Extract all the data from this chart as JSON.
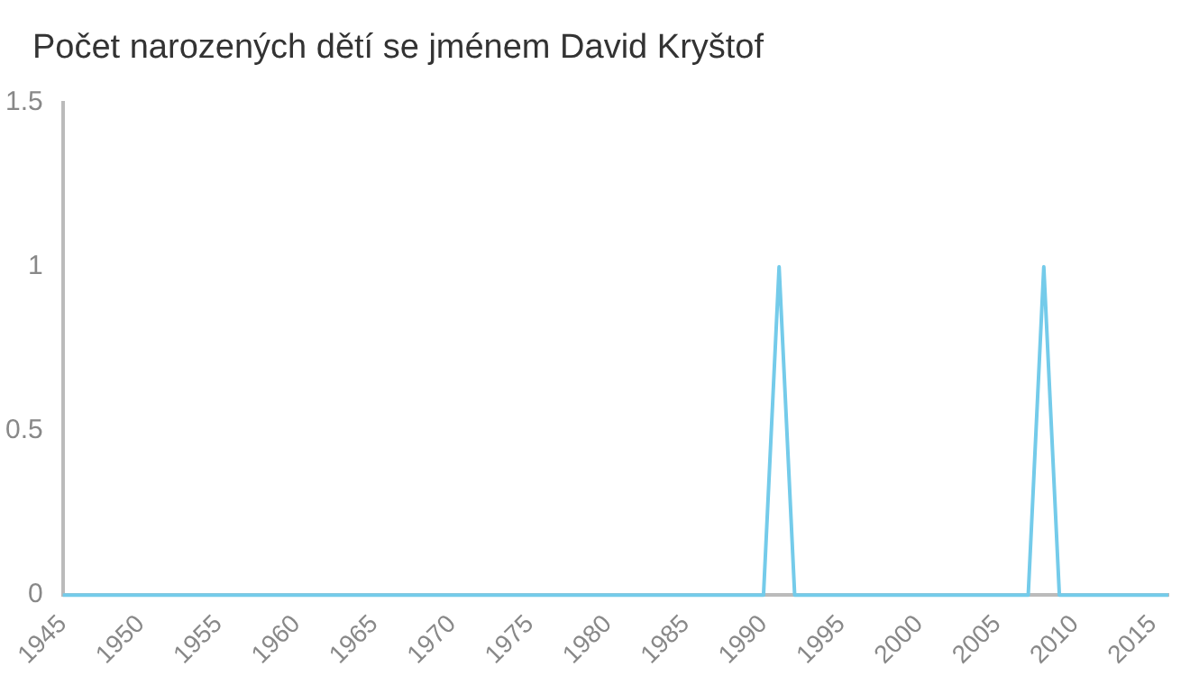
{
  "chart_data": {
    "type": "line",
    "title": "Počet narozených dětí se jménem David Kryštof",
    "x": [
      1945,
      1990,
      1991,
      1992,
      2007,
      2008,
      2009,
      2016
    ],
    "series": [
      {
        "color": "#74cbea",
        "values": [
          0,
          0,
          1,
          0,
          0,
          1,
          0,
          0
        ]
      }
    ],
    "xlim": [
      1945,
      2016
    ],
    "xticks": [
      1945,
      1950,
      1955,
      1960,
      1965,
      1970,
      1975,
      1980,
      1985,
      1990,
      1995,
      2000,
      2005,
      2010,
      2015
    ],
    "ylim": [
      0,
      1.5
    ],
    "yticks": [
      0,
      0.5,
      1,
      1.5
    ],
    "grid": false,
    "legend": false,
    "marker": "none"
  }
}
